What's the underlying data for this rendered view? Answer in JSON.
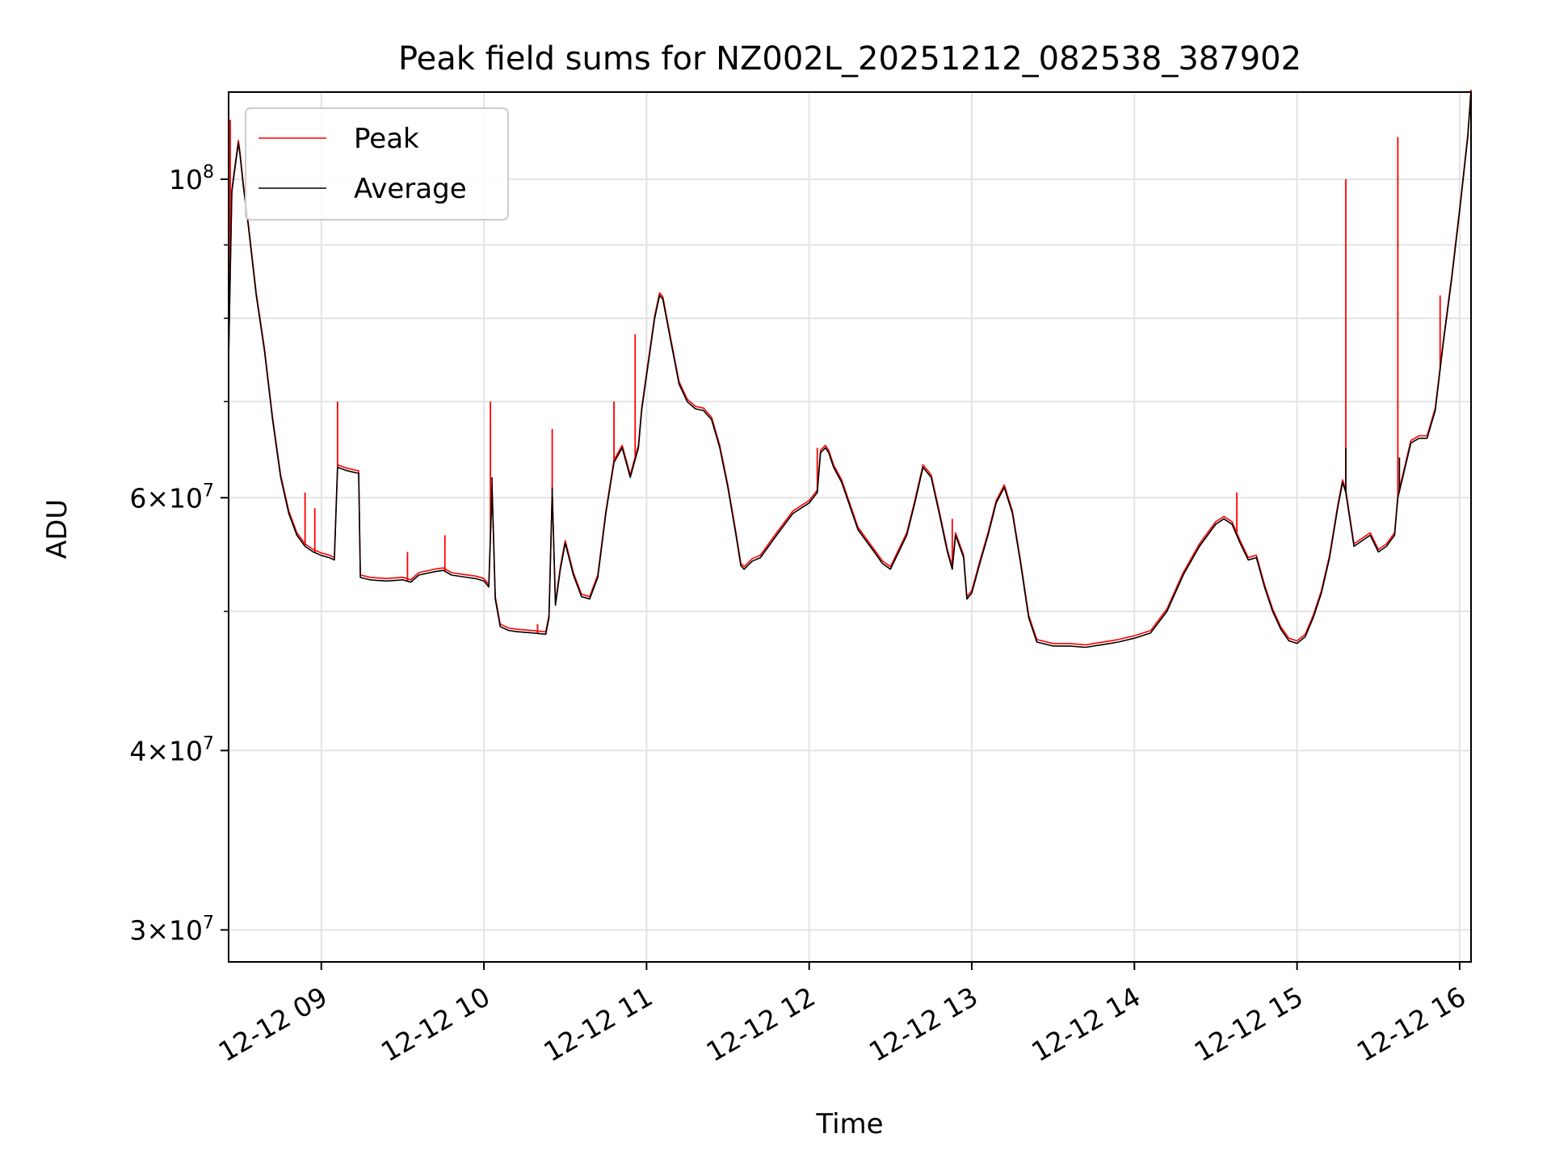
{
  "chart_data": {
    "type": "line",
    "title": "Peak field sums for NZ002L_20251212_082538_387902",
    "xlabel": "Time",
    "ylabel": "ADU",
    "yscale": "log",
    "grid": true,
    "legend_position": "upper-left",
    "xlim": [
      8.43,
      16.07
    ],
    "ylim": [
      28500000,
      115000000
    ],
    "x_ticks": [
      {
        "value": 9,
        "label": "12-12 09"
      },
      {
        "value": 10,
        "label": "12-12 10"
      },
      {
        "value": 11,
        "label": "12-12 11"
      },
      {
        "value": 12,
        "label": "12-12 12"
      },
      {
        "value": 13,
        "label": "12-12 13"
      },
      {
        "value": 14,
        "label": "12-12 14"
      },
      {
        "value": 15,
        "label": "12-12 15"
      },
      {
        "value": 16,
        "label": "12-12 16"
      }
    ],
    "y_ticks": [
      {
        "value": 30000000,
        "mantissa": "3",
        "exponent": "7"
      },
      {
        "value": 40000000,
        "mantissa": "4",
        "exponent": "7"
      },
      {
        "value": 60000000,
        "mantissa": "6",
        "exponent": "7"
      },
      {
        "value": 100000000,
        "mantissa": "",
        "exponent": "8"
      }
    ],
    "y_minor_ticks": [
      50000000,
      70000000,
      80000000,
      90000000
    ],
    "series": [
      {
        "name": "Average",
        "color": "#000000",
        "points": [
          [
            8.43,
            75000000
          ],
          [
            8.45,
            98000000
          ],
          [
            8.47,
            102000000
          ],
          [
            8.49,
            106000000
          ],
          [
            8.5,
            104000000
          ],
          [
            8.52,
            99000000
          ],
          [
            8.55,
            93000000
          ],
          [
            8.6,
            83000000
          ],
          [
            8.65,
            76000000
          ],
          [
            8.7,
            68000000
          ],
          [
            8.75,
            62000000
          ],
          [
            8.8,
            58500000
          ],
          [
            8.85,
            56500000
          ],
          [
            8.9,
            55500000
          ],
          [
            8.95,
            55000000
          ],
          [
            9.0,
            54700000
          ],
          [
            9.05,
            54500000
          ],
          [
            9.08,
            54300000
          ],
          [
            9.1,
            63000000
          ],
          [
            9.15,
            62700000
          ],
          [
            9.2,
            62500000
          ],
          [
            9.23,
            62400000
          ],
          [
            9.24,
            52800000
          ],
          [
            9.3,
            52600000
          ],
          [
            9.4,
            52500000
          ],
          [
            9.5,
            52600000
          ],
          [
            9.55,
            52400000
          ],
          [
            9.6,
            53000000
          ],
          [
            9.7,
            53300000
          ],
          [
            9.75,
            53400000
          ],
          [
            9.8,
            53000000
          ],
          [
            9.9,
            52800000
          ],
          [
            9.95,
            52700000
          ],
          [
            10.0,
            52500000
          ],
          [
            10.03,
            52000000
          ],
          [
            10.05,
            61000000
          ],
          [
            10.07,
            51000000
          ],
          [
            10.1,
            48800000
          ],
          [
            10.15,
            48500000
          ],
          [
            10.2,
            48400000
          ],
          [
            10.3,
            48300000
          ],
          [
            10.38,
            48200000
          ],
          [
            10.4,
            49500000
          ],
          [
            10.42,
            60500000
          ],
          [
            10.44,
            50500000
          ],
          [
            10.47,
            53500000
          ],
          [
            10.5,
            55800000
          ],
          [
            10.55,
            53000000
          ],
          [
            10.6,
            51200000
          ],
          [
            10.65,
            51000000
          ],
          [
            10.7,
            52800000
          ],
          [
            10.75,
            58500000
          ],
          [
            10.8,
            63500000
          ],
          [
            10.85,
            65000000
          ],
          [
            10.9,
            62000000
          ],
          [
            10.95,
            65000000
          ],
          [
            10.97,
            69000000
          ],
          [
            11.0,
            73000000
          ],
          [
            11.05,
            80000000
          ],
          [
            11.08,
            83000000
          ],
          [
            11.1,
            82500000
          ],
          [
            11.15,
            77000000
          ],
          [
            11.2,
            72000000
          ],
          [
            11.25,
            70000000
          ],
          [
            11.3,
            69200000
          ],
          [
            11.35,
            69000000
          ],
          [
            11.4,
            68000000
          ],
          [
            11.45,
            65000000
          ],
          [
            11.5,
            61000000
          ],
          [
            11.55,
            56500000
          ],
          [
            11.58,
            53800000
          ],
          [
            11.6,
            53500000
          ],
          [
            11.65,
            54200000
          ],
          [
            11.7,
            54500000
          ],
          [
            11.8,
            56500000
          ],
          [
            11.9,
            58500000
          ],
          [
            12.0,
            59500000
          ],
          [
            12.05,
            60500000
          ],
          [
            12.07,
            64500000
          ],
          [
            12.1,
            65000000
          ],
          [
            12.12,
            64500000
          ],
          [
            12.15,
            63000000
          ],
          [
            12.2,
            61500000
          ],
          [
            12.3,
            57000000
          ],
          [
            12.4,
            55000000
          ],
          [
            12.45,
            54000000
          ],
          [
            12.5,
            53500000
          ],
          [
            12.6,
            56500000
          ],
          [
            12.65,
            59500000
          ],
          [
            12.7,
            63000000
          ],
          [
            12.75,
            62000000
          ],
          [
            12.8,
            58500000
          ],
          [
            12.85,
            55000000
          ],
          [
            12.88,
            53500000
          ],
          [
            12.9,
            56500000
          ],
          [
            12.95,
            54500000
          ],
          [
            12.97,
            51000000
          ],
          [
            13.0,
            51500000
          ],
          [
            13.05,
            54000000
          ],
          [
            13.1,
            56500000
          ],
          [
            13.15,
            59500000
          ],
          [
            13.2,
            61000000
          ],
          [
            13.25,
            58500000
          ],
          [
            13.3,
            54000000
          ],
          [
            13.35,
            49500000
          ],
          [
            13.4,
            47600000
          ],
          [
            13.5,
            47300000
          ],
          [
            13.6,
            47300000
          ],
          [
            13.7,
            47200000
          ],
          [
            13.8,
            47400000
          ],
          [
            13.9,
            47600000
          ],
          [
            14.0,
            47900000
          ],
          [
            14.1,
            48300000
          ],
          [
            14.2,
            50000000
          ],
          [
            14.3,
            53000000
          ],
          [
            14.4,
            55500000
          ],
          [
            14.5,
            57500000
          ],
          [
            14.55,
            58000000
          ],
          [
            14.6,
            57500000
          ],
          [
            14.65,
            55800000
          ],
          [
            14.7,
            54300000
          ],
          [
            14.75,
            54500000
          ],
          [
            14.8,
            52000000
          ],
          [
            14.85,
            50000000
          ],
          [
            14.9,
            48600000
          ],
          [
            14.95,
            47700000
          ],
          [
            15.0,
            47500000
          ],
          [
            15.05,
            48000000
          ],
          [
            15.1,
            49500000
          ],
          [
            15.15,
            51500000
          ],
          [
            15.2,
            54500000
          ],
          [
            15.25,
            59000000
          ],
          [
            15.28,
            61500000
          ],
          [
            15.3,
            60500000
          ],
          [
            15.35,
            55500000
          ],
          [
            15.4,
            56000000
          ],
          [
            15.45,
            56500000
          ],
          [
            15.5,
            55000000
          ],
          [
            15.55,
            55500000
          ],
          [
            15.6,
            56500000
          ],
          [
            15.62,
            60000000
          ],
          [
            15.65,
            62000000
          ],
          [
            15.7,
            65500000
          ],
          [
            15.75,
            66000000
          ],
          [
            15.8,
            66000000
          ],
          [
            15.85,
            69000000
          ],
          [
            15.9,
            77000000
          ],
          [
            15.95,
            85000000
          ],
          [
            16.0,
            95000000
          ],
          [
            16.05,
            107000000
          ],
          [
            16.07,
            115000000
          ]
        ],
        "spikes": [
          [
            9.1,
            63000000
          ],
          [
            10.05,
            62000000
          ],
          [
            10.42,
            61000000
          ],
          [
            15.3,
            65000000
          ],
          [
            15.63,
            64000000
          ]
        ]
      },
      {
        "name": "Peak",
        "color": "#ff0000",
        "spikes": [
          [
            8.44,
            110000000
          ],
          [
            8.9,
            60500000
          ],
          [
            8.96,
            59000000
          ],
          [
            9.1,
            70000000
          ],
          [
            9.53,
            55000000
          ],
          [
            9.76,
            56500000
          ],
          [
            10.04,
            70000000
          ],
          [
            10.33,
            49000000
          ],
          [
            10.42,
            67000000
          ],
          [
            10.8,
            70000000
          ],
          [
            10.93,
            78000000
          ],
          [
            12.05,
            65000000
          ],
          [
            12.1,
            65000000
          ],
          [
            12.88,
            58000000
          ],
          [
            14.63,
            60500000
          ],
          [
            15.3,
            100000000
          ],
          [
            15.62,
            107000000
          ],
          [
            15.88,
            83000000
          ]
        ]
      }
    ]
  }
}
